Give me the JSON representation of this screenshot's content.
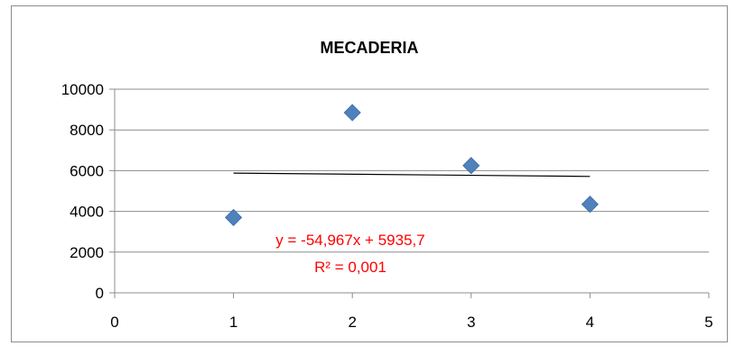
{
  "chart_data": {
    "type": "scatter",
    "title": "MECADERIA",
    "xlabel": "",
    "ylabel": "",
    "xlim": [
      0,
      5
    ],
    "ylim": [
      0,
      10000
    ],
    "x_ticks": [
      0,
      1,
      2,
      3,
      4,
      5
    ],
    "y_ticks": [
      0,
      2000,
      4000,
      6000,
      8000,
      10000
    ],
    "grid": "horizontal",
    "legend": "none",
    "series": [
      {
        "color": "#4f81bd",
        "marker": "diamond",
        "points": [
          {
            "x": 1,
            "y": 3700
          },
          {
            "x": 2,
            "y": 8850
          },
          {
            "x": 3,
            "y": 6250
          },
          {
            "x": 4,
            "y": 4350
          }
        ]
      }
    ],
    "trendline": {
      "type": "linear",
      "slope": -54.967,
      "intercept": 5935.7,
      "x_range": [
        1,
        4
      ],
      "color": "#000000",
      "equation_text": "y = -54,967x + 5935,7",
      "r2_text": "R² = 0,001",
      "label_color": "#ff0000"
    }
  }
}
